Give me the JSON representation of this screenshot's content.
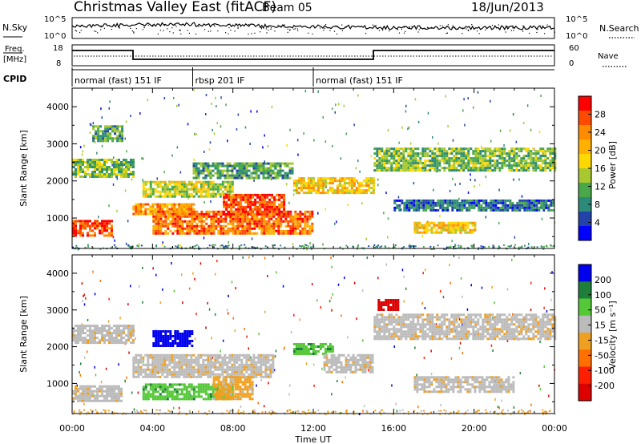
{
  "header": {
    "title": "Christmas Valley East (fitACF)",
    "beam": "Beam 05",
    "date": "18/Jun/2013"
  },
  "noise_panel": {
    "left_label": "N.Sky",
    "right_label": "N.Search",
    "ticks_left": [
      "10^5",
      "10^0"
    ],
    "ticks_right": [
      "10^5",
      "10^0"
    ]
  },
  "freq_panel": {
    "left_label_1": "Freq.",
    "left_label_2": "[MHz]",
    "right_label": "Nave",
    "ticks_left": [
      "18",
      "8"
    ],
    "ticks_right": [
      "60",
      "0"
    ]
  },
  "cpid": {
    "label": "CPID",
    "segments": [
      {
        "text": "normal (fast) 151 IF",
        "start": 0,
        "end": 6
      },
      {
        "text": "rbsp 201 IF",
        "start": 6,
        "end": 12
      },
      {
        "text": "normal (fast) 151 IF",
        "start": 12,
        "end": 24
      }
    ]
  },
  "power_colorbar": {
    "title": "Power [dB]",
    "ticks": [
      "28",
      "24",
      "20",
      "16",
      "12",
      "8",
      "4"
    ],
    "colors": [
      "#ff0000",
      "#ff4a00",
      "#ff8c00",
      "#ffb000",
      "#ffd800",
      "#a8c830",
      "#4aa84a",
      "#2c8a78",
      "#2244aa",
      "#0000ff"
    ]
  },
  "velocity_colorbar": {
    "title": "Velocity [m s⁻¹]",
    "ticks": [
      "200",
      "100",
      "50",
      "15",
      "-15",
      "-50",
      "-100",
      "-200"
    ],
    "colors": [
      "#0000ee",
      "#1d7f3a",
      "#55c838",
      "#bbbbbb",
      "#f0a020",
      "#ff7000",
      "#ff1e00",
      "#dd0000"
    ]
  },
  "axes": {
    "ylabel": "Slant Range [km]",
    "xlabel": "Time UT",
    "yticks": [
      "4000",
      "3000",
      "2000",
      "1000"
    ],
    "xticks": [
      "00:00",
      "04:00",
      "08:00",
      "12:00",
      "16:00",
      "20:00",
      "00:00"
    ]
  },
  "chart_data": [
    {
      "type": "heatmap",
      "title": "Power [dB]",
      "xlabel": "Time UT",
      "ylabel": "Slant Range [km]",
      "xlim": [
        0,
        24
      ],
      "ylim": [
        180,
        4500
      ],
      "clim": [
        0,
        30
      ],
      "colorbar_ticks": [
        4,
        8,
        12,
        16,
        20,
        24,
        28
      ],
      "regions": [
        {
          "x0": 0.0,
          "x1": 2.0,
          "y0": 550,
          "y1": 950,
          "value": 26
        },
        {
          "x0": 0.0,
          "x1": 3.0,
          "y0": 2100,
          "y1": 2600,
          "value": 12
        },
        {
          "x0": 1.0,
          "x1": 2.5,
          "y0": 3100,
          "y1": 3500,
          "value": 10
        },
        {
          "x0": 3.0,
          "x1": 6.0,
          "y0": 1100,
          "y1": 1400,
          "value": 22
        },
        {
          "x0": 3.5,
          "x1": 8.0,
          "y0": 1600,
          "y1": 2000,
          "value": 14
        },
        {
          "x0": 4.0,
          "x1": 12.0,
          "y0": 600,
          "y1": 1200,
          "value": 24
        },
        {
          "x0": 6.0,
          "x1": 11.0,
          "y0": 2100,
          "y1": 2500,
          "value": 10
        },
        {
          "x0": 7.5,
          "x1": 10.5,
          "y0": 1100,
          "y1": 1650,
          "value": 26
        },
        {
          "x0": 11.0,
          "x1": 15.0,
          "y0": 1700,
          "y1": 2100,
          "value": 18
        },
        {
          "x0": 15.0,
          "x1": 24.0,
          "y0": 2300,
          "y1": 2900,
          "value": 12
        },
        {
          "x0": 17.0,
          "x1": 20.0,
          "y0": 600,
          "y1": 900,
          "value": 18
        },
        {
          "x0": 16.0,
          "x1": 24.0,
          "y0": 1200,
          "y1": 1500,
          "value": 6
        }
      ]
    },
    {
      "type": "heatmap",
      "title": "Velocity [m s⁻¹]",
      "xlabel": "Time UT",
      "ylabel": "Slant Range [km]",
      "xlim": [
        0,
        24
      ],
      "ylim": [
        180,
        4500
      ],
      "clim": [
        -200,
        200
      ],
      "colorbar_ticks": [
        200,
        100,
        50,
        15,
        -15,
        -50,
        -100,
        -200
      ],
      "regions": [
        {
          "x0": 0.0,
          "x1": 3.0,
          "y0": 2100,
          "y1": 2600,
          "value": 0
        },
        {
          "x0": 0.0,
          "x1": 2.5,
          "y0": 550,
          "y1": 950,
          "value": 0
        },
        {
          "x0": 4.0,
          "x1": 6.0,
          "y0": 2050,
          "y1": 2450,
          "value": 180
        },
        {
          "x0": 3.0,
          "x1": 10.0,
          "y0": 1200,
          "y1": 1800,
          "value": 0
        },
        {
          "x0": 3.5,
          "x1": 8.0,
          "y0": 600,
          "y1": 1000,
          "value": 60
        },
        {
          "x0": 7.0,
          "x1": 9.0,
          "y0": 600,
          "y1": 1200,
          "value": -30
        },
        {
          "x0": 11.0,
          "x1": 13.0,
          "y0": 1800,
          "y1": 2100,
          "value": 60
        },
        {
          "x0": 12.5,
          "x1": 15.0,
          "y0": 1300,
          "y1": 1800,
          "value": 0
        },
        {
          "x0": 15.0,
          "x1": 24.0,
          "y0": 2200,
          "y1": 2900,
          "value": 0
        },
        {
          "x0": 15.2,
          "x1": 16.2,
          "y0": 3000,
          "y1": 3300,
          "value": -200
        },
        {
          "x0": 17.0,
          "x1": 22.0,
          "y0": 800,
          "y1": 1200,
          "value": 0
        }
      ]
    }
  ]
}
